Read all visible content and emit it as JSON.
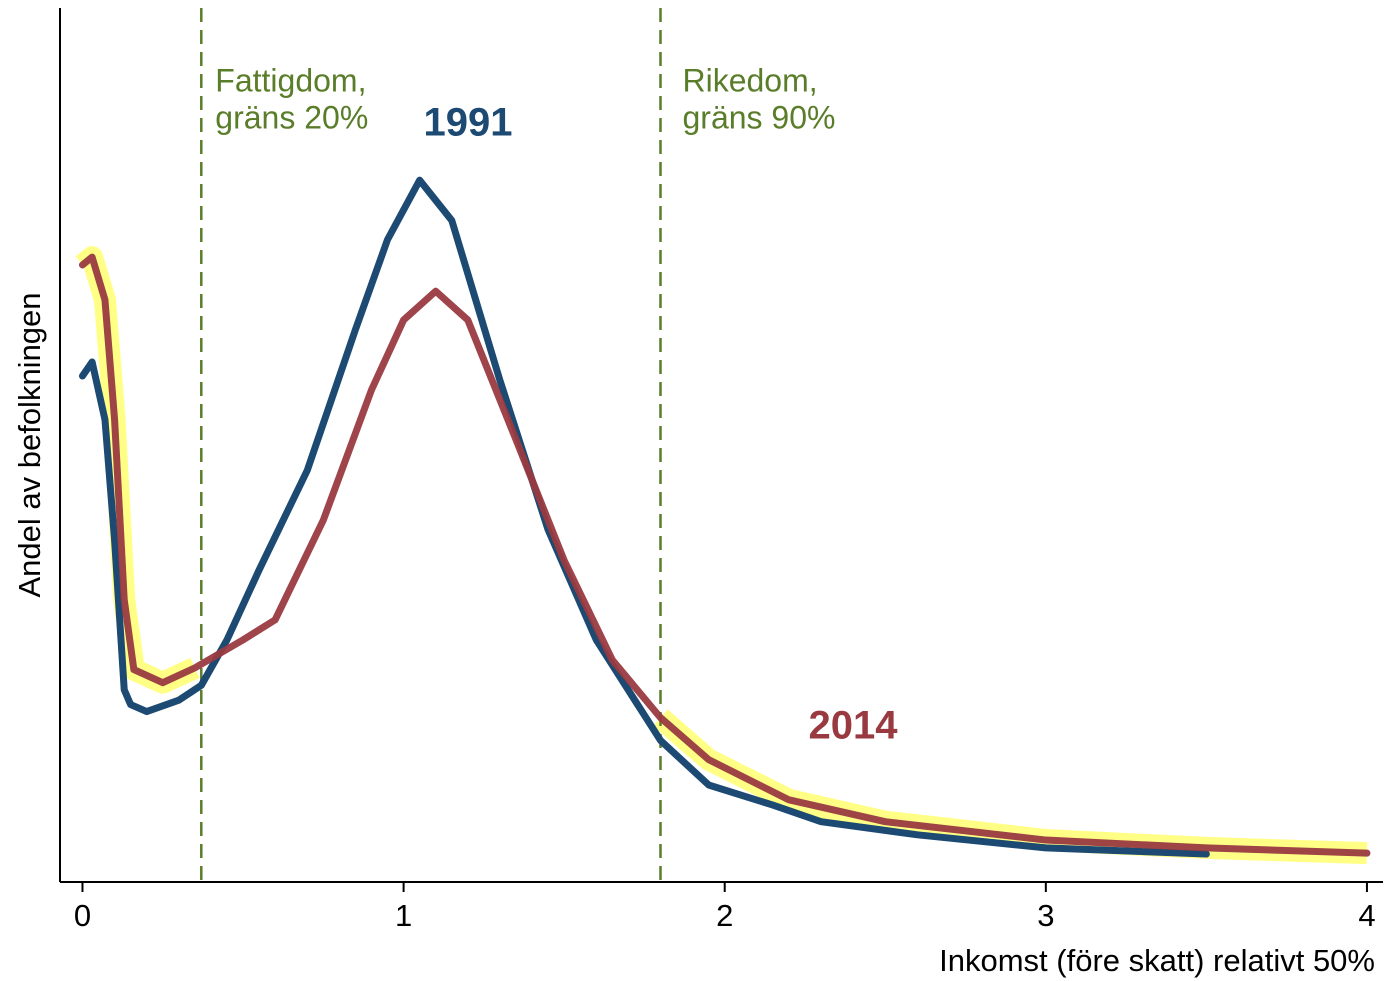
{
  "chart_data": {
    "type": "line",
    "xlabel": "Inkomst (före skatt) relativt 50%",
    "ylabel": "Andel av befolkningen",
    "xlim": [
      -0.07,
      4.05
    ],
    "ylim": [
      0,
      100
    ],
    "xticks": [
      0,
      1,
      2,
      3,
      4
    ],
    "series": [
      {
        "name": "1991",
        "color": "#1c4a72",
        "x": [
          0,
          0.03,
          0.07,
          0.1,
          0.13,
          0.15,
          0.2,
          0.3,
          0.37,
          0.45,
          0.55,
          0.7,
          0.85,
          0.95,
          1.05,
          1.15,
          1.3,
          1.45,
          1.6,
          1.8,
          1.95,
          2.15,
          2.3,
          2.6,
          3.0,
          3.5
        ],
        "values": [
          57.9,
          59.5,
          52.9,
          39.1,
          22.0,
          20.3,
          19.5,
          20.8,
          22.5,
          27.7,
          35.7,
          47.1,
          63.2,
          73.5,
          80.3,
          75.7,
          57.4,
          40.3,
          27.7,
          16.2,
          11.1,
          8.8,
          6.9,
          5.4,
          3.9,
          3.2
        ]
      },
      {
        "name": "2014",
        "color": "#993a40",
        "x": [
          0,
          0.03,
          0.07,
          0.1,
          0.13,
          0.16,
          0.25,
          0.35,
          0.5,
          0.6,
          0.75,
          0.9,
          1.0,
          1.1,
          1.2,
          1.35,
          1.5,
          1.65,
          1.8,
          1.95,
          2.2,
          2.5,
          3.0,
          3.5,
          4.0
        ],
        "values": [
          70.6,
          71.5,
          66.6,
          52.9,
          32.3,
          24.3,
          22.8,
          24.5,
          27.7,
          30.0,
          41.4,
          56.3,
          64.3,
          67.6,
          64.3,
          50.6,
          36.8,
          25.4,
          18.8,
          14.0,
          9.4,
          6.9,
          4.8,
          3.9,
          3.3
        ]
      }
    ],
    "highlight_color": "#ffff70",
    "highlight_ranges": [
      [
        0,
        0.35
      ],
      [
        1.8,
        4.0
      ]
    ],
    "reference_lines": [
      {
        "x": 0.37,
        "color": "#5a7d2a",
        "label": [
          "Fattigdom,",
          "gräns 20%"
        ]
      },
      {
        "x": 1.8,
        "color": "#5a7d2a",
        "label": [
          "Rikedom,",
          "gräns 90%"
        ]
      }
    ]
  }
}
